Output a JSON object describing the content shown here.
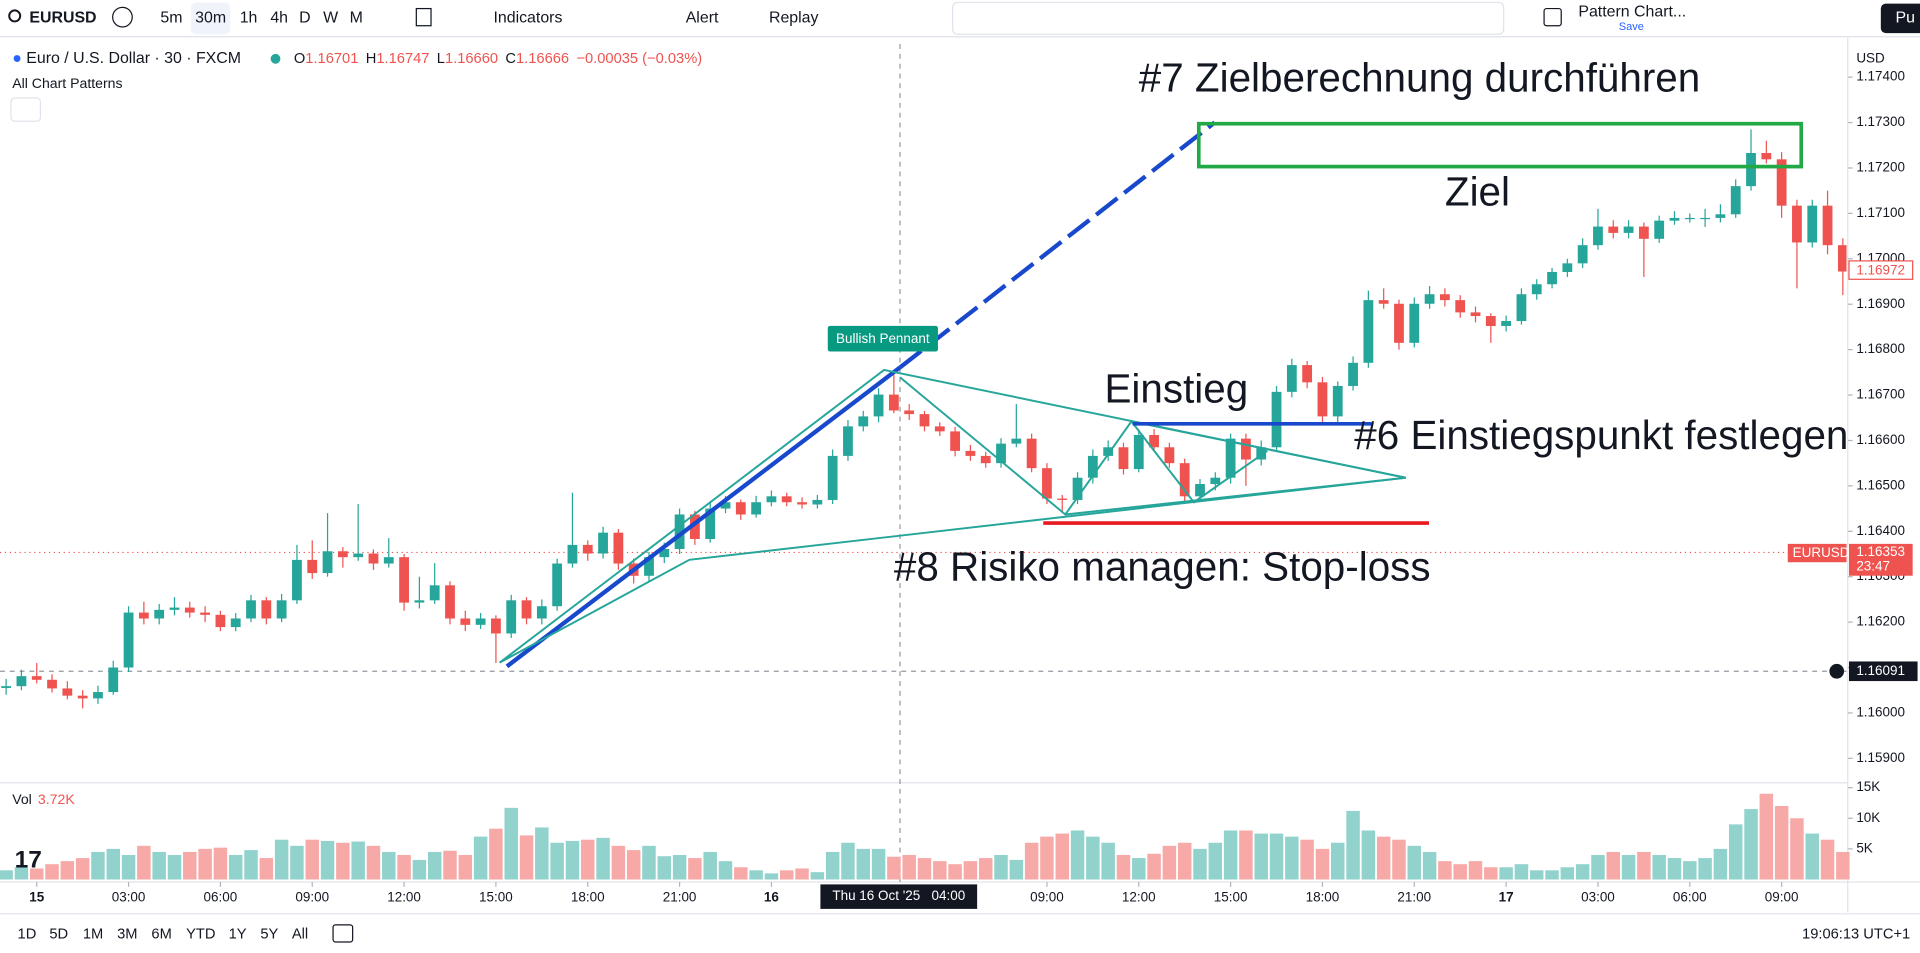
{
  "toolbar": {
    "symbol": "EURUSD",
    "intervals": [
      "5m",
      "30m",
      "1h",
      "4h",
      "D",
      "W",
      "M"
    ],
    "indicators": "Indicators",
    "alert": "Alert",
    "replay": "Replay",
    "layout_name": "Pattern Chart...",
    "save": "Save",
    "publish": "Pu"
  },
  "legend": {
    "title": "Euro / U.S. Dollar · 30 · FXCM",
    "ohlc": [
      {
        "label": "O",
        "value": "1.16701"
      },
      {
        "label": "H",
        "value": "1.16747"
      },
      {
        "label": "L",
        "value": "1.16660"
      },
      {
        "label": "C",
        "value": "1.16666"
      }
    ],
    "change": "−0.00035 (−0.03%)",
    "indicator": "All Chart Patterns",
    "volume_label": "Vol",
    "volume_value": "3.72K"
  },
  "annotations": {
    "target_step": "#7 Zielberechnung durchführen",
    "target": "Ziel",
    "entry": "Einstieg",
    "entry_step": "#6 Einstiegspunkt festlegen",
    "risk_step": "#8 Risiko managen:  Stop-loss",
    "pattern": "Bullish Pennant"
  },
  "price_scale": {
    "currency": "USD",
    "last_price": "1.16972",
    "symbol_tag": "EURUSD",
    "symbol_price": "1.16353",
    "countdown": "23:47",
    "crosshair_price": "1.16091",
    "crosshair_time": "Thu 16 Oct '25   04:00"
  },
  "bottom_bar": {
    "ranges": [
      "1D",
      "5D",
      "1M",
      "3M",
      "6M",
      "YTD",
      "1Y",
      "5Y",
      "All"
    ],
    "clock": "19:06:13 UTC+1"
  },
  "chart_data": {
    "type": "candlestick",
    "up_color": "#26a69a",
    "down_color": "#ef5350",
    "ylim": [
      1.15849,
      1.17462
    ],
    "yticks": [
      {
        "value": 1.159,
        "label": "1.15900"
      },
      {
        "value": 1.16,
        "label": "1.16000"
      },
      {
        "value": 1.161,
        "label": "1.16100"
      },
      {
        "value": 1.162,
        "label": "1.16200"
      },
      {
        "value": 1.163,
        "label": "1.16300"
      },
      {
        "value": 1.164,
        "label": "1.16400"
      },
      {
        "value": 1.165,
        "label": "1.16500"
      },
      {
        "value": 1.166,
        "label": "1.16600"
      },
      {
        "value": 1.167,
        "label": "1.16700"
      },
      {
        "value": 1.168,
        "label": "1.16800"
      },
      {
        "value": 1.169,
        "label": "1.16900"
      },
      {
        "value": 1.17,
        "label": "1.17000"
      },
      {
        "value": 1.171,
        "label": "1.17100"
      },
      {
        "value": 1.172,
        "label": "1.17200"
      },
      {
        "value": 1.173,
        "label": "1.17300"
      },
      {
        "value": 1.174,
        "label": "1.17400"
      }
    ],
    "xticks": [
      "15",
      "03:00",
      "06:00",
      "09:00",
      "12:00",
      "15:00",
      "18:00",
      "21:00",
      "16",
      null,
      null,
      "09:00",
      "12:00",
      "15:00",
      "18:00",
      "21:00",
      "17",
      "03:00",
      "06:00",
      "09:00"
    ],
    "candles": [
      [
        1.16055,
        1.16075,
        1.1604,
        1.16059
      ],
      [
        1.16059,
        1.16095,
        1.1605,
        1.16081
      ],
      [
        1.16081,
        1.1611,
        1.16065,
        1.16073
      ],
      [
        1.16073,
        1.16085,
        1.16045,
        1.16054
      ],
      [
        1.16054,
        1.1607,
        1.1603,
        1.16038
      ],
      [
        1.16038,
        1.1605,
        1.1601,
        1.16032
      ],
      [
        1.16032,
        1.1606,
        1.1602,
        1.16046
      ],
      [
        1.16046,
        1.16115,
        1.1604,
        1.161
      ],
      [
        1.161,
        1.16235,
        1.1609,
        1.16221
      ],
      [
        1.16221,
        1.16245,
        1.16195,
        1.16208
      ],
      [
        1.16208,
        1.1624,
        1.16195,
        1.16227
      ],
      [
        1.16227,
        1.16255,
        1.16215,
        1.16232
      ],
      [
        1.16232,
        1.16245,
        1.1621,
        1.16221
      ],
      [
        1.16221,
        1.16235,
        1.162,
        1.16216
      ],
      [
        1.16216,
        1.16225,
        1.1618,
        1.16189
      ],
      [
        1.16189,
        1.1622,
        1.1618,
        1.16208
      ],
      [
        1.16208,
        1.1626,
        1.162,
        1.16248
      ],
      [
        1.16248,
        1.16255,
        1.16195,
        1.16208
      ],
      [
        1.16208,
        1.16262,
        1.162,
        1.16248
      ],
      [
        1.16248,
        1.1637,
        1.1624,
        1.16337
      ],
      [
        1.16337,
        1.1638,
        1.16295,
        1.16308
      ],
      [
        1.16308,
        1.1644,
        1.163,
        1.16356
      ],
      [
        1.16356,
        1.16365,
        1.1632,
        1.16343
      ],
      [
        1.16343,
        1.1646,
        1.16335,
        1.16351
      ],
      [
        1.16351,
        1.1636,
        1.16315,
        1.16329
      ],
      [
        1.16329,
        1.16385,
        1.1632,
        1.16343
      ],
      [
        1.16343,
        1.1635,
        1.16225,
        1.16243
      ],
      [
        1.16243,
        1.163,
        1.1623,
        1.16248
      ],
      [
        1.16248,
        1.1633,
        1.1624,
        1.16281
      ],
      [
        1.16281,
        1.1629,
        1.16195,
        1.16208
      ],
      [
        1.16208,
        1.16225,
        1.1618,
        1.16194
      ],
      [
        1.16194,
        1.1622,
        1.16185,
        1.16208
      ],
      [
        1.16208,
        1.16215,
        1.1611,
        1.16175
      ],
      [
        1.16175,
        1.1626,
        1.16165,
        1.16248
      ],
      [
        1.16248,
        1.16255,
        1.16195,
        1.16208
      ],
      [
        1.16208,
        1.1625,
        1.16195,
        1.16235
      ],
      [
        1.16235,
        1.1634,
        1.16225,
        1.16329
      ],
      [
        1.16329,
        1.16485,
        1.1632,
        1.1637
      ],
      [
        1.1637,
        1.1638,
        1.16335,
        1.16351
      ],
      [
        1.16351,
        1.1641,
        1.1634,
        1.16397
      ],
      [
        1.16397,
        1.16405,
        1.16315,
        1.16329
      ],
      [
        1.16329,
        1.1634,
        1.16285,
        1.16302
      ],
      [
        1.16302,
        1.16355,
        1.1629,
        1.16343
      ],
      [
        1.16343,
        1.16375,
        1.1633,
        1.16361
      ],
      [
        1.16361,
        1.1645,
        1.1635,
        1.16437
      ],
      [
        1.16437,
        1.16445,
        1.1637,
        1.16383
      ],
      [
        1.16383,
        1.16465,
        1.16375,
        1.1645
      ],
      [
        1.1645,
        1.16478,
        1.1644,
        1.16464
      ],
      [
        1.16464,
        1.1647,
        1.16425,
        1.16437
      ],
      [
        1.16437,
        1.16478,
        1.1643,
        1.16464
      ],
      [
        1.16464,
        1.1649,
        1.16455,
        1.16477
      ],
      [
        1.16477,
        1.16485,
        1.16455,
        1.16464
      ],
      [
        1.16464,
        1.16475,
        1.1645,
        1.16459
      ],
      [
        1.16459,
        1.1648,
        1.1645,
        1.16469
      ],
      [
        1.16469,
        1.1658,
        1.1646,
        1.16566
      ],
      [
        1.16566,
        1.16645,
        1.16555,
        1.16631
      ],
      [
        1.16631,
        1.16665,
        1.1662,
        1.16653
      ],
      [
        1.16653,
        1.16715,
        1.1664,
        1.16701
      ],
      [
        1.16701,
        1.16747,
        1.1666,
        1.16666
      ],
      [
        1.16666,
        1.1668,
        1.16645,
        1.16658
      ],
      [
        1.16658,
        1.16665,
        1.1662,
        1.16631
      ],
      [
        1.16631,
        1.1664,
        1.1661,
        1.1662
      ],
      [
        1.1662,
        1.1663,
        1.16565,
        1.16577
      ],
      [
        1.16577,
        1.1659,
        1.16555,
        1.16566
      ],
      [
        1.16566,
        1.16575,
        1.1654,
        1.1655
      ],
      [
        1.1655,
        1.16605,
        1.1654,
        1.16593
      ],
      [
        1.16593,
        1.1668,
        1.16585,
        1.16604
      ],
      [
        1.16604,
        1.16615,
        1.1653,
        1.16539
      ],
      [
        1.16539,
        1.1655,
        1.1646,
        1.16472
      ],
      [
        1.16472,
        1.1648,
        1.1644,
        1.16469
      ],
      [
        1.16469,
        1.1653,
        1.1646,
        1.16518
      ],
      [
        1.16518,
        1.1658,
        1.16505,
        1.16566
      ],
      [
        1.16566,
        1.166,
        1.16555,
        1.16585
      ],
      [
        1.16585,
        1.16595,
        1.16525,
        1.16537
      ],
      [
        1.16537,
        1.16625,
        1.1653,
        1.16612
      ],
      [
        1.16612,
        1.16625,
        1.16575,
        1.16585
      ],
      [
        1.16585,
        1.16595,
        1.1654,
        1.1655
      ],
      [
        1.1655,
        1.1656,
        1.16465,
        1.16477
      ],
      [
        1.16477,
        1.16515,
        1.16465,
        1.16504
      ],
      [
        1.16504,
        1.1653,
        1.1649,
        1.16518
      ],
      [
        1.16518,
        1.16615,
        1.16505,
        1.16604
      ],
      [
        1.16604,
        1.16615,
        1.165,
        1.16558
      ],
      [
        1.16558,
        1.166,
        1.16545,
        1.16585
      ],
      [
        1.16585,
        1.1672,
        1.16575,
        1.16707
      ],
      [
        1.16707,
        1.1678,
        1.16695,
        1.16766
      ],
      [
        1.16766,
        1.16775,
        1.16715,
        1.16728
      ],
      [
        1.16728,
        1.1674,
        1.16635,
        1.16653
      ],
      [
        1.16653,
        1.1673,
        1.1664,
        1.1672
      ],
      [
        1.1672,
        1.16785,
        1.1671,
        1.16771
      ],
      [
        1.16771,
        1.1693,
        1.1676,
        1.16909
      ],
      [
        1.16909,
        1.16935,
        1.1689,
        1.16901
      ],
      [
        1.16901,
        1.1691,
        1.168,
        1.16815
      ],
      [
        1.16815,
        1.16915,
        1.16805,
        1.16901
      ],
      [
        1.16901,
        1.1694,
        1.1689,
        1.16922
      ],
      [
        1.16922,
        1.16935,
        1.16895,
        1.16909
      ],
      [
        1.16909,
        1.1692,
        1.1687,
        1.16882
      ],
      [
        1.16882,
        1.16895,
        1.1686,
        1.16874
      ],
      [
        1.16874,
        1.1688,
        1.16815,
        1.16852
      ],
      [
        1.16852,
        1.16875,
        1.1684,
        1.16863
      ],
      [
        1.16863,
        1.16935,
        1.16855,
        1.16922
      ],
      [
        1.16922,
        1.16955,
        1.1691,
        1.16944
      ],
      [
        1.16944,
        1.1698,
        1.16935,
        1.16971
      ],
      [
        1.16971,
        1.17,
        1.1696,
        1.1699
      ],
      [
        1.1699,
        1.17045,
        1.1698,
        1.1703
      ],
      [
        1.1703,
        1.1711,
        1.1702,
        1.17071
      ],
      [
        1.17071,
        1.17085,
        1.17045,
        1.17057
      ],
      [
        1.17057,
        1.17085,
        1.17045,
        1.17071
      ],
      [
        1.17071,
        1.1708,
        1.1696,
        1.17044
      ],
      [
        1.17044,
        1.17095,
        1.17035,
        1.17084
      ],
      [
        1.17084,
        1.17105,
        1.17075,
        1.1709
      ],
      [
        1.1709,
        1.171,
        1.1708,
        1.1709
      ],
      [
        1.1709,
        1.1711,
        1.1707,
        1.1709
      ],
      [
        1.1709,
        1.1712,
        1.1708,
        1.17098
      ],
      [
        1.17098,
        1.17175,
        1.1709,
        1.1716
      ],
      [
        1.1716,
        1.17285,
        1.1715,
        1.17233
      ],
      [
        1.17233,
        1.1726,
        1.1721,
        1.17219
      ],
      [
        1.17219,
        1.17235,
        1.1709,
        1.17117
      ],
      [
        1.17117,
        1.1713,
        1.16935,
        1.17036
      ],
      [
        1.17036,
        1.1713,
        1.17025,
        1.17117
      ],
      [
        1.17117,
        1.1715,
        1.1701,
        1.1703
      ],
      [
        1.1703,
        1.17045,
        1.1692,
        1.16972
      ]
    ],
    "volume": {
      "ylim": [
        0,
        15600
      ],
      "yticks": [
        {
          "value": 5000,
          "label": "5K"
        },
        {
          "value": 10000,
          "label": "10K"
        },
        {
          "value": 15000,
          "label": "15K"
        }
      ],
      "values": [
        1500,
        2000,
        1800,
        2500,
        3000,
        3500,
        4500,
        5000,
        4000,
        5500,
        4500,
        4000,
        4500,
        5000,
        5200,
        4000,
        4800,
        3500,
        6500,
        5500,
        6500,
        6300,
        6000,
        6200,
        5500,
        4500,
        4000,
        3200,
        4500,
        4700,
        4000,
        7000,
        8300,
        11700,
        7200,
        8500,
        6000,
        6300,
        6500,
        6800,
        5500,
        4800,
        5500,
        3800,
        4000,
        3500,
        4500,
        3000,
        2000,
        1500,
        1000,
        1500,
        1800,
        1200,
        4500,
        6000,
        5000,
        5000,
        3720,
        4000,
        3500,
        3000,
        2500,
        3000,
        3500,
        4000,
        3200,
        6000,
        7000,
        7500,
        8000,
        7000,
        6000,
        4000,
        3500,
        4200,
        5500,
        6000,
        5000,
        6000,
        8000,
        8000,
        7500,
        7500,
        7000,
        6500,
        5000,
        6000,
        11200,
        8000,
        7000,
        6500,
        5500,
        4500,
        3000,
        2500,
        3000,
        2000,
        2000,
        2500,
        1500,
        1500,
        2000,
        2500,
        4000,
        4500,
        4000,
        4500,
        4000,
        3500,
        3000,
        3500,
        5000,
        9000,
        11500,
        14000,
        12000,
        10000,
        7500,
        6500,
        4500
      ]
    }
  }
}
